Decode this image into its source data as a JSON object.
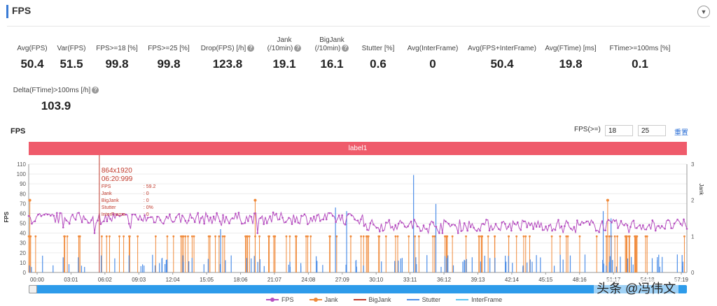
{
  "header": {
    "title": "FPS",
    "collapse_icon": "chevron-down-icon"
  },
  "metrics": [
    {
      "label": "Avg(FPS)",
      "value": "50.4",
      "help": false
    },
    {
      "label": "Var(FPS)",
      "value": "51.5",
      "help": false
    },
    {
      "label": "FPS>=18 [%]",
      "value": "99.8",
      "help": false
    },
    {
      "label": "FPS>=25 [%]",
      "value": "99.8",
      "help": false
    },
    {
      "label": "Drop(FPS) [/h]",
      "value": "123.8",
      "help": true
    },
    {
      "label": "Jank",
      "label2": "(/10min)",
      "value": "19.1",
      "help": true
    },
    {
      "label": "BigJank",
      "label2": "(/10min)",
      "value": "16.1",
      "help": true
    },
    {
      "label": "Stutter [%]",
      "value": "0.6",
      "help": false
    },
    {
      "label": "Avg(InterFrame)",
      "value": "0",
      "help": false
    },
    {
      "label": "Avg(FPS+InterFrame)",
      "value": "50.4",
      "help": false
    },
    {
      "label": "Avg(FTime) [ms]",
      "value": "19.8",
      "help": false
    },
    {
      "label": "FTime>=100ms [%]",
      "value": "0.1",
      "help": false
    },
    {
      "label": "Delta(FTime)>100ms [/h]",
      "value": "103.9",
      "help": true
    }
  ],
  "chart_header": {
    "title": "FPS",
    "filter_label": "FPS(>=)",
    "threshold_low": "18",
    "threshold_high": "25",
    "reset_label": "重置"
  },
  "label_band": "label1",
  "tooltip": {
    "resolution": "864x1920",
    "time": "06:20:999",
    "lines": [
      "FPS : 59.2",
      "Jank : 0",
      "BigJank : 0",
      "Stutter : 0%",
      "InterFrame : 0"
    ]
  },
  "legend": [
    "FPS",
    "Jank",
    "BigJank",
    "Stutter",
    "InterFrame"
  ],
  "watermark": "头条 @冯伟文",
  "chart_data": {
    "type": "line",
    "title": "FPS",
    "ylabel": "FPS",
    "y2label": "Jank",
    "ylim": [
      0,
      110
    ],
    "y2lim": [
      0,
      3
    ],
    "yticks": [
      "0",
      "10",
      "20",
      "30",
      "40",
      "50",
      "60",
      "70",
      "80",
      "90",
      "100",
      "110"
    ],
    "y2ticks": [
      "0",
      "1",
      "2",
      "3"
    ],
    "x_ticks": [
      "00:00",
      "03:01",
      "06:02",
      "09:03",
      "12:04",
      "15:05",
      "18:06",
      "21:07",
      "24:08",
      "27:09",
      "30:10",
      "33:11",
      "36:12",
      "39:13",
      "42:14",
      "45:15",
      "48:16",
      "51:17",
      "54:18",
      "57:19"
    ],
    "x_range_minutes": [
      0,
      59
    ],
    "series": [
      {
        "name": "FPS",
        "axis": "left",
        "color": "#b64fc0",
        "baseline": 55,
        "baseline_late": 48
      },
      {
        "name": "Jank",
        "axis": "right",
        "color": "#f08a3a",
        "typical_value": 1,
        "peaks": [
          {
            "t": 0.1,
            "v": 2
          },
          {
            "t": 20.3,
            "v": 2
          },
          {
            "t": 51.9,
            "v": 2
          }
        ]
      },
      {
        "name": "BigJank",
        "axis": "right",
        "color": "#d9534f",
        "marker_time": "06:20"
      },
      {
        "name": "Stutter",
        "axis": "right",
        "color": "#4d8ee8",
        "peak": {
          "t": 34.5,
          "v": 2.7
        }
      },
      {
        "name": "InterFrame",
        "axis": "right",
        "color": "#5bc4f0"
      }
    ],
    "colors": {
      "fps": "#b64fc0",
      "jank": "#f08a3a",
      "bigjank": "#c0392b",
      "stutter": "#4d8ee8",
      "interframe": "#5bc4f0",
      "band": "#ef5b6b",
      "slider": "#2d9bea"
    }
  }
}
